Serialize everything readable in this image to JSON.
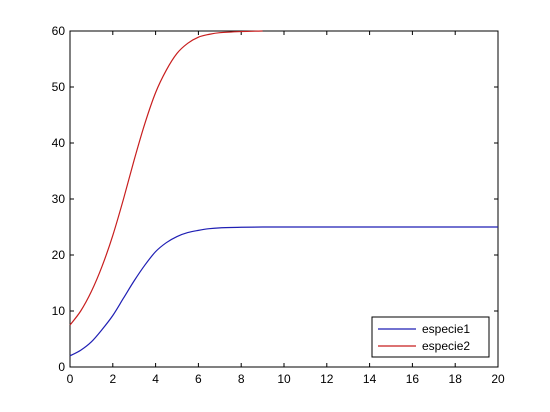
{
  "chart_data": {
    "type": "line",
    "title": "",
    "xlabel": "",
    "ylabel": "",
    "xlim": [
      0,
      20
    ],
    "ylim": [
      0,
      60
    ],
    "x_ticks": [
      0,
      2,
      4,
      6,
      8,
      10,
      12,
      14,
      16,
      18,
      20
    ],
    "y_ticks": [
      0,
      10,
      20,
      30,
      40,
      50,
      60
    ],
    "grid": false,
    "legend_position": "bottom-right",
    "series": [
      {
        "name": "especie1",
        "color": "#1f1fb4",
        "points": [
          [
            0,
            2.0
          ],
          [
            0.5,
            3.0
          ],
          [
            1,
            4.5
          ],
          [
            1.5,
            6.7
          ],
          [
            2,
            9.2
          ],
          [
            2.5,
            12.3
          ],
          [
            3,
            15.4
          ],
          [
            3.5,
            18.2
          ],
          [
            4,
            20.6
          ],
          [
            4.5,
            22.2
          ],
          [
            5,
            23.3
          ],
          [
            5.5,
            24.0
          ],
          [
            6,
            24.4
          ],
          [
            6.5,
            24.7
          ],
          [
            7,
            24.85
          ],
          [
            8,
            24.95
          ],
          [
            9,
            25.0
          ],
          [
            10,
            25.0
          ],
          [
            12,
            25.0
          ],
          [
            14,
            25.0
          ],
          [
            16,
            25.0
          ],
          [
            18,
            25.0
          ],
          [
            20,
            25.0
          ]
        ]
      },
      {
        "name": "especie2",
        "color": "#c81e1e",
        "points": [
          [
            0,
            7.5
          ],
          [
            0.5,
            10.0
          ],
          [
            1,
            13.5
          ],
          [
            1.5,
            18.0
          ],
          [
            2,
            23.5
          ],
          [
            2.5,
            30.0
          ],
          [
            3,
            37.0
          ],
          [
            3.5,
            43.5
          ],
          [
            4,
            49.0
          ],
          [
            4.5,
            53.0
          ],
          [
            5,
            56.0
          ],
          [
            5.5,
            57.8
          ],
          [
            6,
            58.9
          ],
          [
            6.5,
            59.4
          ],
          [
            7,
            59.7
          ],
          [
            8,
            59.9
          ],
          [
            9,
            60.0
          ]
        ]
      }
    ]
  }
}
